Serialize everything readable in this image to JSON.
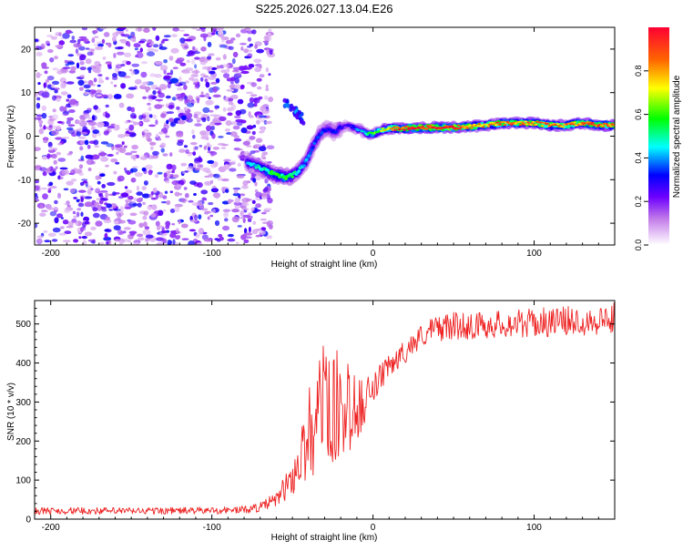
{
  "title": "S225.2026.027.13.04.E26",
  "chart_data": [
    {
      "type": "heatmap",
      "xlabel": "Height of straight line (km)",
      "ylabel": "Frequency (Hz)",
      "xlim": [
        -210,
        150
      ],
      "ylim": [
        -25,
        25
      ],
      "xticks": [
        -200,
        -100,
        0,
        100
      ],
      "yticks": [
        -20,
        -10,
        0,
        10,
        20
      ],
      "colorbar": {
        "label": "Normalized spectral amplitude",
        "range": [
          0,
          1
        ],
        "ticks": [
          "0.0",
          "0.2",
          "0.4",
          "0.6",
          "0.8"
        ],
        "tick_values": [
          0.0,
          0.2,
          0.4,
          0.6,
          0.8
        ]
      },
      "noise_region_x": [
        -210,
        -68
      ],
      "ridge": {
        "x": [
          -78,
          -72,
          -66,
          -60,
          -55,
          -50,
          -46,
          -42,
          -38,
          -34,
          -30,
          -27,
          -24,
          -20,
          -16,
          -12,
          -8,
          -4,
          0,
          5,
          10,
          20,
          30,
          40,
          50,
          60,
          70,
          80,
          90,
          100,
          110,
          120,
          130,
          140,
          150
        ],
        "freq": [
          -6,
          -7,
          -8,
          -9,
          -9.5,
          -9,
          -8,
          -6,
          -3,
          0,
          1.5,
          1.5,
          1,
          2,
          2.5,
          2,
          1.5,
          0.5,
          0.5,
          1.5,
          1.8,
          1.8,
          2,
          2,
          2,
          2.2,
          2.5,
          3,
          3,
          3,
          2.5,
          2.5,
          3,
          2.5,
          2.5
        ],
        "amp": [
          0.35,
          0.4,
          0.45,
          0.5,
          0.5,
          0.45,
          0.4,
          0.35,
          0.3,
          0.3,
          0.25,
          0.25,
          0.25,
          0.25,
          0.2,
          0.3,
          0.35,
          0.45,
          0.55,
          0.6,
          0.7,
          0.9,
          0.9,
          0.9,
          0.9,
          0.8,
          0.75,
          0.8,
          0.8,
          0.75,
          0.8,
          0.75,
          0.8,
          0.8,
          0.85
        ]
      }
    },
    {
      "type": "line",
      "xlabel": "Height of straight line (km)",
      "ylabel": "SNR (10 * v/v)",
      "xlim": [
        -210,
        150
      ],
      "ylim": [
        0,
        560
      ],
      "xticks": [
        -200,
        -100,
        0,
        100
      ],
      "yticks": [
        0,
        100,
        200,
        300,
        400,
        500
      ],
      "color": "#ee2222",
      "envelope": {
        "x": [
          -210,
          -150,
          -100,
          -80,
          -70,
          -60,
          -50,
          -45,
          -40,
          -35,
          -30,
          -25,
          -20,
          -15,
          -10,
          -5,
          0,
          5,
          10,
          15,
          20,
          25,
          30,
          40,
          50,
          60,
          80,
          100,
          120,
          140,
          150
        ],
        "base": [
          12,
          12,
          13,
          14,
          18,
          30,
          60,
          80,
          100,
          120,
          120,
          140,
          150,
          170,
          200,
          240,
          290,
          330,
          360,
          380,
          400,
          420,
          440,
          455,
          460,
          460,
          465,
          465,
          470,
          470,
          475
        ],
        "noise": [
          18,
          18,
          18,
          20,
          25,
          40,
          90,
          150,
          200,
          250,
          300,
          280,
          220,
          200,
          160,
          120,
          80,
          70,
          60,
          60,
          60,
          60,
          60,
          70,
          70,
          70,
          70,
          75,
          75,
          80,
          80
        ]
      }
    }
  ]
}
